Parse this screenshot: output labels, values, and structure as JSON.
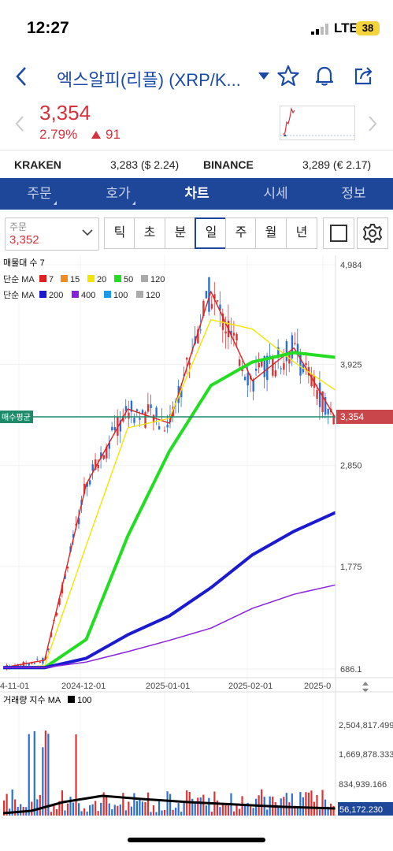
{
  "status": {
    "time": "12:27",
    "network": "LTE",
    "battery": "38"
  },
  "header": {
    "title": "엑스알피(리플) (XRP/K...",
    "icons": [
      "back-icon",
      "dropdown-icon",
      "star-icon",
      "bell-icon",
      "share-icon"
    ]
  },
  "price": {
    "value": "3,354",
    "percent": "2.79%",
    "change": "91",
    "direction": "up",
    "color": "#d6313b"
  },
  "exchanges": [
    {
      "name": "KRAKEN",
      "value": "3,283 ($ 2.24)"
    },
    {
      "name": "BINANCE",
      "value": "3,289 (€ 2.17)"
    }
  ],
  "tabs": [
    {
      "label": "주문",
      "active": false
    },
    {
      "label": "호가",
      "active": false
    },
    {
      "label": "차트",
      "active": true
    },
    {
      "label": "시세",
      "active": false
    },
    {
      "label": "정보",
      "active": false
    }
  ],
  "toolbar": {
    "order_label": "주문",
    "order_value": "3,352",
    "periods": [
      "틱",
      "초",
      "분",
      "일",
      "주",
      "월",
      "년"
    ],
    "active_period": "일"
  },
  "chart": {
    "volume_profile": "매물대 수 7",
    "ma_label1": "단순 MA",
    "ma_set1": [
      {
        "p": "7",
        "color": "#e02020"
      },
      {
        "p": "15",
        "color": "#f28c1e"
      },
      {
        "p": "20",
        "color": "#f5e400"
      },
      {
        "p": "50",
        "color": "#22dd22"
      },
      {
        "p": "120",
        "color": "#aaaaaa"
      }
    ],
    "ma_label2": "단순 MA",
    "ma_set2": [
      {
        "p": "200",
        "color": "#1a1ad0"
      },
      {
        "p": "400",
        "color": "#8822dd"
      },
      {
        "p": "100",
        "color": "#1a9ae8"
      },
      {
        "p": "120",
        "color": "#aaaaaa"
      }
    ],
    "y_ticks": [
      "4,984",
      "3,925",
      "2,850",
      "1,775",
      "686.1"
    ],
    "x_ticks": [
      "4-11-01",
      "2024-12-01",
      "2025-01-01",
      "2025-02-01",
      "2025-0"
    ],
    "avg_buy_label": "매수평균",
    "current_price_tag": "3,354",
    "volume_label": "거래량 지수 MA",
    "volume_ma_period": "100",
    "volume_ticks": [
      "2,504,817.499",
      "1,669,878.333",
      "834,939.166"
    ],
    "volume_current": "56,172.230"
  },
  "chart_data": {
    "type": "line",
    "x": [
      "2024-11-01",
      "2024-11-15",
      "2024-12-01",
      "2024-12-15",
      "2025-01-01",
      "2025-01-15",
      "2025-02-01",
      "2025-02-15",
      "2025-03-01"
    ],
    "series": [
      {
        "name": "MA 7",
        "values": [
          700,
          780,
          2650,
          3450,
          3300,
          4700,
          3750,
          4100,
          3354
        ]
      },
      {
        "name": "MA 20",
        "values": [
          700,
          720,
          2000,
          3250,
          3350,
          4400,
          4300,
          3950,
          3650
        ]
      },
      {
        "name": "MA 50",
        "values": [
          700,
          700,
          1000,
          2100,
          3000,
          3700,
          3950,
          4050,
          4000
        ]
      },
      {
        "name": "MA 200",
        "values": [
          700,
          700,
          800,
          1050,
          1250,
          1550,
          1900,
          2150,
          2350
        ]
      },
      {
        "name": "MA 400",
        "values": [
          700,
          700,
          760,
          870,
          990,
          1120,
          1330,
          1480,
          1580
        ]
      }
    ],
    "ylim": [
      686.1,
      4984
    ],
    "current": 3354
  }
}
